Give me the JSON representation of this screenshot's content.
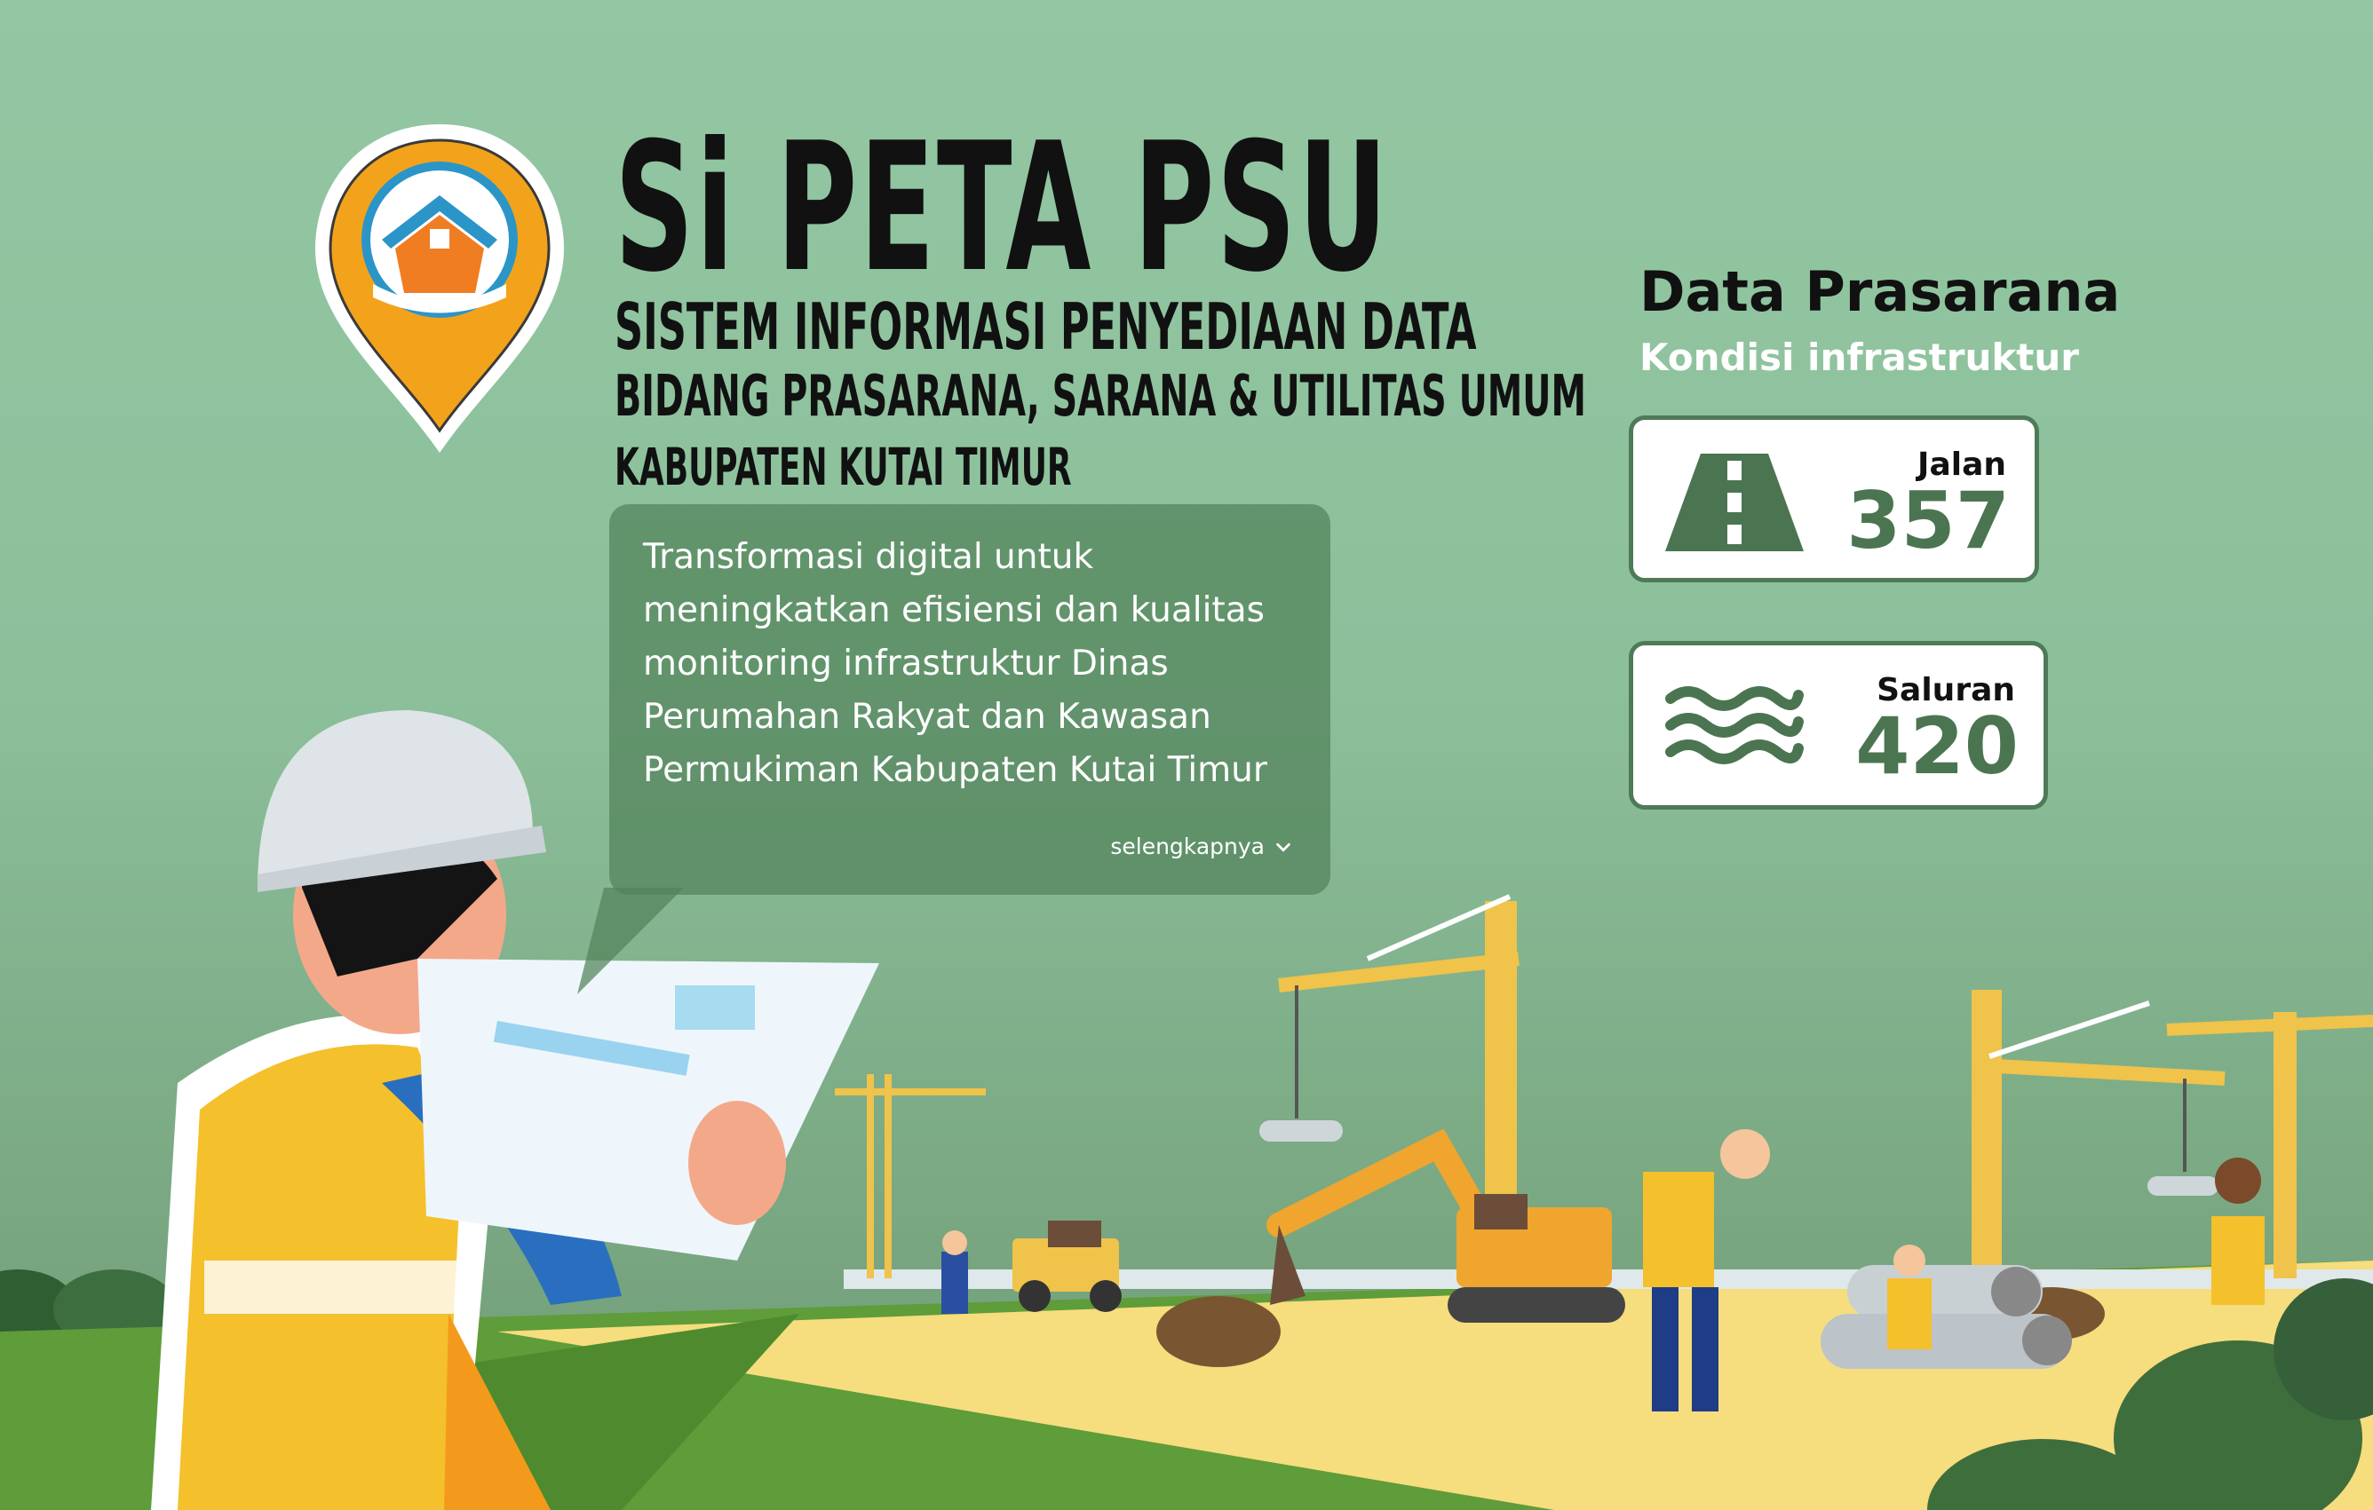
{
  "brand": {
    "title": "Si PETA PSU",
    "subtitle_line1": "SISTEM INFORMASI PENYEDIAAN DATA",
    "subtitle_line2": "BIDANG PRASARANA, SARANA & UTILITAS UMUM",
    "subtitle_line3": "KABUPATEN KUTAI TIMUR",
    "logo_icon": "map-pin-house-icon"
  },
  "intro": {
    "text": "Transformasi digital untuk meningkatkan efisiensi dan kualitas monitoring infrastruktur Dinas Perumahan Rakyat dan Kawasan Permukiman Kabupaten Kutai Timur",
    "more_label": "selengkapnya",
    "more_icon": "chevron-down-icon"
  },
  "panel": {
    "title": "Data Prasarana",
    "subtitle": "Kondisi infrastruktur",
    "cards": [
      {
        "label": "Jalan",
        "value": "357",
        "icon": "road-icon"
      },
      {
        "label": "Saluran",
        "value": "420",
        "icon": "water-waves-icon"
      }
    ]
  },
  "colors": {
    "background": "#8cc09b",
    "accent_green": "#4b7551",
    "pin_orange": "#f2a31b",
    "pin_blue": "#2b95c8"
  }
}
